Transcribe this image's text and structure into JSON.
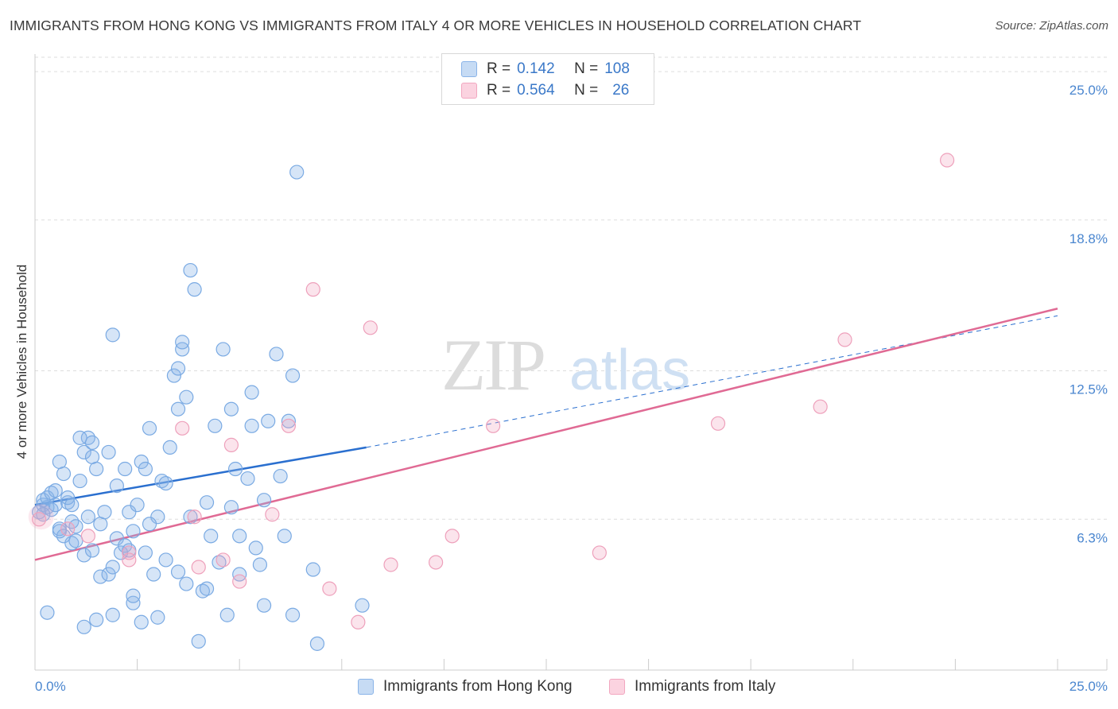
{
  "title": "IMMIGRANTS FROM HONG KONG VS IMMIGRANTS FROM ITALY 4 OR MORE VEHICLES IN HOUSEHOLD CORRELATION CHART",
  "source": "Source: ZipAtlas.com",
  "watermark": {
    "zip": "ZIP",
    "atlas": "atlas"
  },
  "legend": {
    "rows": [
      {
        "r_label": "R =",
        "r_value": "0.142",
        "n_label": "N =",
        "n_value": "108"
      },
      {
        "r_label": "R =",
        "r_value": "0.564",
        "n_label": "N =",
        "n_value": "26"
      }
    ]
  },
  "chart_data": {
    "type": "scatter",
    "title": "IMMIGRANTS FROM HONG KONG VS IMMIGRANTS FROM ITALY 4 OR MORE VEHICLES IN HOUSEHOLD CORRELATION CHART",
    "xlabel": "",
    "ylabel": "4 or more Vehicles in Household",
    "xlim": [
      0,
      25
    ],
    "ylim": [
      0,
      25.6
    ],
    "x_tick_labels": [
      "0.0%",
      "25.0%"
    ],
    "y_ticks": [
      6.3,
      12.5,
      18.8,
      25.0
    ],
    "y_tick_labels": [
      "6.3%",
      "12.5%",
      "18.8%",
      "25.0%"
    ],
    "series": [
      {
        "name": "Immigrants from Hong Kong",
        "color": "#8ab4e8",
        "line_color": "#2a6fcf",
        "R": 0.142,
        "N": 108,
        "trend": {
          "x0": 0,
          "y0": 6.9,
          "x1": 8.1,
          "y1": 9.3,
          "dash_x1": 25,
          "dash_y1": 14.8
        },
        "points": [
          [
            0.1,
            6.6
          ],
          [
            0.2,
            6.9
          ],
          [
            0.2,
            7.1
          ],
          [
            0.3,
            6.8
          ],
          [
            0.3,
            7.2
          ],
          [
            0.4,
            7.4
          ],
          [
            0.4,
            6.7
          ],
          [
            0.5,
            6.9
          ],
          [
            0.6,
            8.7
          ],
          [
            0.7,
            8.2
          ],
          [
            0.5,
            7.5
          ],
          [
            0.6,
            5.9
          ],
          [
            0.7,
            5.6
          ],
          [
            0.8,
            7.0
          ],
          [
            0.9,
            5.3
          ],
          [
            0.9,
            6.2
          ],
          [
            1.0,
            5.4
          ],
          [
            0.8,
            7.2
          ],
          [
            1.0,
            6.0
          ],
          [
            1.1,
            7.9
          ],
          [
            0.9,
            6.9
          ],
          [
            1.2,
            9.1
          ],
          [
            1.3,
            9.7
          ],
          [
            1.4,
            8.9
          ],
          [
            1.4,
            9.5
          ],
          [
            1.5,
            8.4
          ],
          [
            1.2,
            4.8
          ],
          [
            1.1,
            9.7
          ],
          [
            1.6,
            6.1
          ],
          [
            1.7,
            6.6
          ],
          [
            1.6,
            3.9
          ],
          [
            1.8,
            9.1
          ],
          [
            1.8,
            4.0
          ],
          [
            1.9,
            4.3
          ],
          [
            2.0,
            7.7
          ],
          [
            2.0,
            5.5
          ],
          [
            2.1,
            4.9
          ],
          [
            2.2,
            8.4
          ],
          [
            2.3,
            6.6
          ],
          [
            2.4,
            2.8
          ],
          [
            2.4,
            5.8
          ],
          [
            2.5,
            6.9
          ],
          [
            2.6,
            8.7
          ],
          [
            2.7,
            8.4
          ],
          [
            2.7,
            4.9
          ],
          [
            2.8,
            10.1
          ],
          [
            2.9,
            4.0
          ],
          [
            3.0,
            2.2
          ],
          [
            3.1,
            7.9
          ],
          [
            3.2,
            7.8
          ],
          [
            3.3,
            9.3
          ],
          [
            3.4,
            12.3
          ],
          [
            3.5,
            10.9
          ],
          [
            3.5,
            12.6
          ],
          [
            3.6,
            13.4
          ],
          [
            3.6,
            13.7
          ],
          [
            3.7,
            11.4
          ],
          [
            3.7,
            3.6
          ],
          [
            3.8,
            16.7
          ],
          [
            3.9,
            15.9
          ],
          [
            4.0,
            1.2
          ],
          [
            4.1,
            3.3
          ],
          [
            4.2,
            7.0
          ],
          [
            4.3,
            5.6
          ],
          [
            4.4,
            10.2
          ],
          [
            4.5,
            4.5
          ],
          [
            4.6,
            13.4
          ],
          [
            4.7,
            2.3
          ],
          [
            4.8,
            10.9
          ],
          [
            4.9,
            8.4
          ],
          [
            5.0,
            5.6
          ],
          [
            5.2,
            8.0
          ],
          [
            5.3,
            11.6
          ],
          [
            5.3,
            10.2
          ],
          [
            5.4,
            5.1
          ],
          [
            5.5,
            4.4
          ],
          [
            5.6,
            2.7
          ],
          [
            5.7,
            10.4
          ],
          [
            5.9,
            13.2
          ],
          [
            6.0,
            8.1
          ],
          [
            6.1,
            5.6
          ],
          [
            6.2,
            10.4
          ],
          [
            6.3,
            12.3
          ],
          [
            6.3,
            2.3
          ],
          [
            6.8,
            4.2
          ],
          [
            6.9,
            1.1
          ],
          [
            0.3,
            2.4
          ],
          [
            1.2,
            1.8
          ],
          [
            1.5,
            2.1
          ],
          [
            1.9,
            2.3
          ],
          [
            2.2,
            5.2
          ],
          [
            2.4,
            3.1
          ],
          [
            2.6,
            2.0
          ],
          [
            3.0,
            6.4
          ],
          [
            3.5,
            4.1
          ],
          [
            3.8,
            6.4
          ],
          [
            4.2,
            3.4
          ],
          [
            4.8,
            6.8
          ],
          [
            5.0,
            4.0
          ],
          [
            5.6,
            7.1
          ],
          [
            1.3,
            6.4
          ],
          [
            2.3,
            5.0
          ],
          [
            0.6,
            5.8
          ],
          [
            3.2,
            4.6
          ],
          [
            1.9,
            14.0
          ],
          [
            6.4,
            20.8
          ],
          [
            8.0,
            2.7
          ],
          [
            0.2,
            6.5
          ],
          [
            1.4,
            5.0
          ],
          [
            2.8,
            6.1
          ]
        ]
      },
      {
        "name": "Immigrants from Italy",
        "color": "#f2a7c0",
        "line_color": "#e06a94",
        "R": 0.564,
        "N": 26,
        "trend": {
          "x0": 0,
          "y0": 4.6,
          "x1": 25,
          "y1": 15.1
        },
        "points": [
          [
            0.1,
            6.3
          ],
          [
            0.8,
            5.9
          ],
          [
            1.3,
            5.6
          ],
          [
            2.3,
            4.9
          ],
          [
            2.3,
            4.6
          ],
          [
            3.6,
            10.1
          ],
          [
            3.9,
            6.4
          ],
          [
            4.0,
            4.3
          ],
          [
            4.6,
            4.6
          ],
          [
            4.8,
            9.4
          ],
          [
            5.0,
            3.7
          ],
          [
            5.8,
            6.5
          ],
          [
            6.2,
            10.2
          ],
          [
            6.8,
            15.9
          ],
          [
            7.2,
            3.4
          ],
          [
            7.9,
            2.0
          ],
          [
            8.2,
            14.3
          ],
          [
            8.7,
            4.4
          ],
          [
            9.8,
            4.5
          ],
          [
            10.2,
            5.6
          ],
          [
            11.2,
            10.2
          ],
          [
            13.8,
            4.9
          ],
          [
            16.7,
            10.3
          ],
          [
            19.2,
            11.0
          ],
          [
            19.8,
            13.8
          ],
          [
            22.3,
            21.3
          ]
        ]
      }
    ]
  },
  "bottom_legend": {
    "items": [
      {
        "label": "Immigrants from Hong Kong"
      },
      {
        "label": "Immigrants from Italy"
      }
    ]
  }
}
